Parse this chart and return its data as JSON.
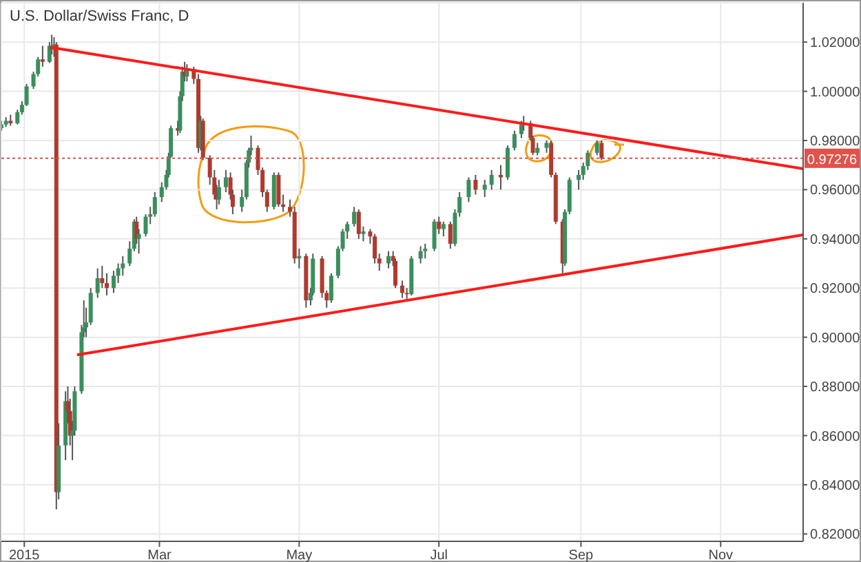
{
  "chart_data": {
    "type": "candlestick",
    "title": "U.S. Dollar/Swiss Franc, D",
    "x": [
      "2014-12-22",
      "2014-12-24",
      "2014-12-26",
      "2014-12-29",
      "2014-12-31",
      "2015-01-02",
      "2015-01-05",
      "2015-01-07",
      "2015-01-09",
      "2015-01-12",
      "2015-01-13",
      "2015-01-14",
      "2015-01-15",
      "2015-01-16",
      "2015-01-19",
      "2015-01-20",
      "2015-01-21",
      "2015-01-22",
      "2015-01-23",
      "2015-01-26",
      "2015-01-27",
      "2015-01-28",
      "2015-01-30",
      "2015-02-02",
      "2015-02-04",
      "2015-02-06",
      "2015-02-09",
      "2015-02-11",
      "2015-02-13",
      "2015-02-16",
      "2015-02-18",
      "2015-02-19",
      "2015-02-20",
      "2015-02-23",
      "2015-02-25",
      "2015-02-27",
      "2015-03-02",
      "2015-03-04",
      "2015-03-05",
      "2015-03-06",
      "2015-03-09",
      "2015-03-10",
      "2015-03-11",
      "2015-03-12",
      "2015-03-13",
      "2015-03-16",
      "2015-03-18",
      "2015-03-19",
      "2015-03-20",
      "2015-03-23",
      "2015-03-25",
      "2015-03-26",
      "2015-03-27",
      "2015-03-30",
      "2015-04-01",
      "2015-04-02",
      "2015-04-06",
      "2015-04-08",
      "2015-04-09",
      "2015-04-10",
      "2015-04-13",
      "2015-04-15",
      "2015-04-17",
      "2015-04-20",
      "2015-04-22",
      "2015-04-24",
      "2015-04-27",
      "2015-04-29",
      "2015-05-01",
      "2015-05-04",
      "2015-05-06",
      "2015-05-07",
      "2015-05-11",
      "2015-05-13",
      "2015-05-15",
      "2015-05-18",
      "2015-05-20",
      "2015-05-22",
      "2015-05-25",
      "2015-05-27",
      "2015-05-29",
      "2015-06-01",
      "2015-06-03",
      "2015-06-05",
      "2015-06-09",
      "2015-06-11",
      "2015-06-12",
      "2015-06-15",
      "2015-06-17",
      "2015-06-19",
      "2015-06-23",
      "2015-06-25",
      "2015-06-29",
      "2015-07-01",
      "2015-07-03",
      "2015-07-06",
      "2015-07-08",
      "2015-07-10",
      "2015-07-14",
      "2015-07-17",
      "2015-07-21",
      "2015-07-24",
      "2015-07-28",
      "2015-07-31",
      "2015-08-03",
      "2015-08-06",
      "2015-08-07",
      "2015-08-10",
      "2015-08-11",
      "2015-08-13",
      "2015-08-17",
      "2015-08-19",
      "2015-08-21",
      "2015-08-24",
      "2015-08-25",
      "2015-08-27",
      "2015-08-31",
      "2015-09-02",
      "2015-09-04",
      "2015-09-08",
      "2015-09-10"
    ],
    "ohlc": [
      [
        0.985,
        0.988,
        0.984,
        0.9865
      ],
      [
        0.9865,
        0.9895,
        0.9855,
        0.988
      ],
      [
        0.988,
        0.9905,
        0.986,
        0.987
      ],
      [
        0.987,
        0.9925,
        0.9865,
        0.9915
      ],
      [
        0.9915,
        0.996,
        0.9905,
        0.9945
      ],
      [
        0.9945,
        1.003,
        0.994,
        1.002
      ],
      [
        1.002,
        1.008,
        1.001,
        1.007
      ],
      [
        1.007,
        1.014,
        1.006,
        1.013
      ],
      [
        1.013,
        1.0185,
        1.01,
        1.012
      ],
      [
        1.012,
        1.02,
        1.0115,
        1.0185
      ],
      [
        1.0185,
        1.023,
        1.015,
        1.017
      ],
      [
        1.017,
        1.022,
        1.014,
        1.019
      ],
      [
        1.019,
        1.02,
        0.83,
        0.837
      ],
      [
        0.837,
        0.865,
        0.834,
        0.856
      ],
      [
        0.856,
        0.878,
        0.85,
        0.874
      ],
      [
        0.874,
        0.88,
        0.865,
        0.87
      ],
      [
        0.87,
        0.875,
        0.856,
        0.86
      ],
      [
        0.86,
        0.866,
        0.85,
        0.862
      ],
      [
        0.862,
        0.88,
        0.86,
        0.878
      ],
      [
        0.878,
        0.905,
        0.877,
        0.902
      ],
      [
        0.902,
        0.915,
        0.9,
        0.904
      ],
      [
        0.904,
        0.912,
        0.9,
        0.906
      ],
      [
        0.906,
        0.92,
        0.905,
        0.918
      ],
      [
        0.918,
        0.928,
        0.916,
        0.924
      ],
      [
        0.924,
        0.929,
        0.92,
        0.922
      ],
      [
        0.922,
        0.926,
        0.917,
        0.92
      ],
      [
        0.92,
        0.927,
        0.918,
        0.925
      ],
      [
        0.925,
        0.93,
        0.922,
        0.928
      ],
      [
        0.928,
        0.933,
        0.925,
        0.93
      ],
      [
        0.93,
        0.939,
        0.929,
        0.936
      ],
      [
        0.936,
        0.948,
        0.935,
        0.947
      ],
      [
        0.947,
        0.949,
        0.938,
        0.94
      ],
      [
        0.94,
        0.944,
        0.934,
        0.942
      ],
      [
        0.942,
        0.95,
        0.941,
        0.949
      ],
      [
        0.949,
        0.953,
        0.946,
        0.95
      ],
      [
        0.95,
        0.959,
        0.949,
        0.957
      ],
      [
        0.957,
        0.963,
        0.955,
        0.961
      ],
      [
        0.961,
        0.968,
        0.96,
        0.966
      ],
      [
        0.966,
        0.975,
        0.965,
        0.9735
      ],
      [
        0.9735,
        0.986,
        0.973,
        0.985
      ],
      [
        0.985,
        0.988,
        0.982,
        0.984
      ],
      [
        0.984,
        1.0,
        0.983,
        0.998
      ],
      [
        0.998,
        1.01,
        0.996,
        1.008
      ],
      [
        1.008,
        1.012,
        1.004,
        1.006
      ],
      [
        1.006,
        1.011,
        1.004,
        1.009
      ],
      [
        1.009,
        1.01,
        1.003,
        1.005
      ],
      [
        1.005,
        1.007,
        0.975,
        0.977
      ],
      [
        0.977,
        0.99,
        0.976,
        0.988
      ],
      [
        0.988,
        0.989,
        0.972,
        0.973
      ],
      [
        0.973,
        0.974,
        0.962,
        0.965
      ],
      [
        0.965,
        0.968,
        0.956,
        0.958
      ],
      [
        0.958,
        0.962,
        0.952,
        0.956
      ],
      [
        0.956,
        0.964,
        0.954,
        0.961
      ],
      [
        0.961,
        0.968,
        0.959,
        0.965
      ],
      [
        0.965,
        0.967,
        0.956,
        0.958
      ],
      [
        0.958,
        0.96,
        0.95,
        0.953
      ],
      [
        0.953,
        0.96,
        0.951,
        0.957
      ],
      [
        0.957,
        0.972,
        0.956,
        0.971
      ],
      [
        0.971,
        0.977,
        0.969,
        0.976
      ],
      [
        0.976,
        0.982,
        0.974,
        0.977
      ],
      [
        0.977,
        0.978,
        0.966,
        0.968
      ],
      [
        0.968,
        0.969,
        0.957,
        0.959
      ],
      [
        0.959,
        0.96,
        0.951,
        0.953
      ],
      [
        0.953,
        0.967,
        0.952,
        0.966
      ],
      [
        0.966,
        0.967,
        0.953,
        0.954
      ],
      [
        0.954,
        0.958,
        0.951,
        0.953
      ],
      [
        0.953,
        0.956,
        0.949,
        0.951
      ],
      [
        0.951,
        0.953,
        0.93,
        0.932
      ],
      [
        0.932,
        0.936,
        0.928,
        0.933
      ],
      [
        0.933,
        0.934,
        0.912,
        0.915
      ],
      [
        0.915,
        0.92,
        0.913,
        0.918
      ],
      [
        0.918,
        0.934,
        0.917,
        0.932
      ],
      [
        0.932,
        0.933,
        0.916,
        0.918
      ],
      [
        0.918,
        0.919,
        0.912,
        0.915
      ],
      [
        0.915,
        0.926,
        0.914,
        0.925
      ],
      [
        0.925,
        0.937,
        0.924,
        0.936
      ],
      [
        0.936,
        0.944,
        0.935,
        0.943
      ],
      [
        0.943,
        0.947,
        0.94,
        0.946
      ],
      [
        0.946,
        0.953,
        0.945,
        0.951
      ],
      [
        0.951,
        0.952,
        0.94,
        0.942
      ],
      [
        0.942,
        0.945,
        0.939,
        0.943
      ],
      [
        0.943,
        0.944,
        0.938,
        0.941
      ],
      [
        0.941,
        0.942,
        0.93,
        0.932
      ],
      [
        0.932,
        0.934,
        0.927,
        0.93
      ],
      [
        0.93,
        0.935,
        0.928,
        0.933
      ],
      [
        0.933,
        0.935,
        0.929,
        0.931
      ],
      [
        0.931,
        0.932,
        0.92,
        0.921
      ],
      [
        0.921,
        0.923,
        0.916,
        0.918
      ],
      [
        0.918,
        0.92,
        0.915,
        0.9175
      ],
      [
        0.9175,
        0.933,
        0.917,
        0.932
      ],
      [
        0.932,
        0.937,
        0.93,
        0.935
      ],
      [
        0.935,
        0.938,
        0.932,
        0.936
      ],
      [
        0.936,
        0.948,
        0.935,
        0.947
      ],
      [
        0.947,
        0.949,
        0.942,
        0.944
      ],
      [
        0.944,
        0.947,
        0.941,
        0.946
      ],
      [
        0.946,
        0.947,
        0.936,
        0.938
      ],
      [
        0.938,
        0.952,
        0.937,
        0.9506
      ],
      [
        0.9506,
        0.959,
        0.949,
        0.957
      ],
      [
        0.957,
        0.965,
        0.955,
        0.964
      ],
      [
        0.964,
        0.966,
        0.958,
        0.96
      ],
      [
        0.96,
        0.964,
        0.957,
        0.962
      ],
      [
        0.962,
        0.968,
        0.96,
        0.966
      ],
      [
        0.966,
        0.97,
        0.96,
        0.965
      ],
      [
        0.965,
        0.978,
        0.964,
        0.977
      ],
      [
        0.977,
        0.984,
        0.976,
        0.9826
      ],
      [
        0.9826,
        0.988,
        0.981,
        0.9864
      ],
      [
        0.9864,
        0.99,
        0.984,
        0.987
      ],
      [
        0.987,
        0.988,
        0.98,
        0.981
      ],
      [
        0.981,
        0.982,
        0.974,
        0.975
      ],
      [
        0.975,
        0.979,
        0.974,
        0.977
      ],
      [
        0.977,
        0.98,
        0.975,
        0.979
      ],
      [
        0.979,
        0.98,
        0.965,
        0.966
      ],
      [
        0.966,
        0.967,
        0.946,
        0.947
      ],
      [
        0.947,
        0.948,
        0.926,
        0.93
      ],
      [
        0.93,
        0.952,
        0.929,
        0.951
      ],
      [
        0.951,
        0.965,
        0.95,
        0.964
      ],
      [
        0.964,
        0.968,
        0.96,
        0.966
      ],
      [
        0.966,
        0.971,
        0.964,
        0.9696
      ],
      [
        0.9696,
        0.976,
        0.968,
        0.975
      ],
      [
        0.975,
        0.98,
        0.974,
        0.979
      ],
      [
        0.979,
        0.98,
        0.972,
        0.9728
      ]
    ],
    "colors": [
      "#3a8f5c",
      "#3a8f5c",
      "#b03a2e",
      "#3a8f5c",
      "#3a8f5c",
      "#3a8f5c",
      "#3a8f5c",
      "#3a8f5c",
      "#b03a2e",
      "#3a8f5c",
      "#b03a2e",
      "#3a8f5c",
      "#b03a2e",
      "#3a8f5c",
      "#3a8f5c",
      "#b03a2e",
      "#b03a2e",
      "#3a8f5c",
      "#3a8f5c",
      "#3a8f5c",
      "#3a8f5c",
      "#3a8f5c",
      "#3a8f5c",
      "#3a8f5c",
      "#b03a2e",
      "#b03a2e",
      "#3a8f5c",
      "#3a8f5c",
      "#3a8f5c",
      "#3a8f5c",
      "#3a8f5c",
      "#b03a2e",
      "#3a8f5c",
      "#3a8f5c",
      "#3a8f5c",
      "#3a8f5c",
      "#3a8f5c",
      "#3a8f5c",
      "#3a8f5c",
      "#3a8f5c",
      "#b03a2e",
      "#3a8f5c",
      "#3a8f5c",
      "#b03a2e",
      "#3a8f5c",
      "#b03a2e",
      "#b03a2e",
      "#3a8f5c",
      "#b03a2e",
      "#b03a2e",
      "#b03a2e",
      "#b03a2e",
      "#3a8f5c",
      "#3a8f5c",
      "#b03a2e",
      "#b03a2e",
      "#3a8f5c",
      "#3a8f5c",
      "#3a8f5c",
      "#3a8f5c",
      "#b03a2e",
      "#b03a2e",
      "#b03a2e",
      "#3a8f5c",
      "#b03a2e",
      "#b03a2e",
      "#b03a2e",
      "#b03a2e",
      "#3a8f5c",
      "#b03a2e",
      "#3a8f5c",
      "#3a8f5c",
      "#b03a2e",
      "#b03a2e",
      "#3a8f5c",
      "#3a8f5c",
      "#3a8f5c",
      "#3a8f5c",
      "#3a8f5c",
      "#b03a2e",
      "#3a8f5c",
      "#b03a2e",
      "#b03a2e",
      "#b03a2e",
      "#3a8f5c",
      "#b03a2e",
      "#b03a2e",
      "#b03a2e",
      "#b03a2e",
      "#3a8f5c",
      "#3a8f5c",
      "#3a8f5c",
      "#3a8f5c",
      "#b03a2e",
      "#3a8f5c",
      "#b03a2e",
      "#3a8f5c",
      "#3a8f5c",
      "#3a8f5c",
      "#b03a2e",
      "#3a8f5c",
      "#3a8f5c",
      "#b03a2e",
      "#3a8f5c",
      "#3a8f5c",
      "#3a8f5c",
      "#3a8f5c",
      "#b03a2e",
      "#b03a2e",
      "#3a8f5c",
      "#3a8f5c",
      "#b03a2e",
      "#b03a2e",
      "#b03a2e",
      "#3a8f5c",
      "#3a8f5c",
      "#3a8f5c",
      "#3a8f5c",
      "#3a8f5c",
      "#3a8f5c",
      "#b03a2e"
    ],
    "series": [
      {
        "type": "line",
        "color": "#ff1a1a",
        "x": [
          "2015-01-13",
          "2015-12-07"
        ],
        "values": [
          1.0178,
          0.9685
        ]
      },
      {
        "type": "line",
        "color": "#ff1a1a",
        "x": [
          "2015-01-24",
          "2015-12-07"
        ],
        "values": [
          0.8928,
          0.9416
        ]
      }
    ],
    "ref_lines": [
      {
        "axis": "y",
        "value": 0.97276,
        "label": "0.97276",
        "color": "#e0524a",
        "line_style": "dotted"
      }
    ],
    "xlim": [
      "2014-12-22",
      "2015-12-07"
    ],
    "xticks": [
      {
        "value": "2015-01-01",
        "label": "2015"
      },
      {
        "value": "2015-03-01",
        "label": "Mar"
      },
      {
        "value": "2015-05-01",
        "label": "May"
      },
      {
        "value": "2015-07-01",
        "label": "Jul"
      },
      {
        "value": "2015-09-01",
        "label": "Sep"
      },
      {
        "value": "2015-11-01",
        "label": "Nov"
      }
    ],
    "ylim": [
      0.817,
      1.036
    ],
    "yticks": [
      {
        "value": 0.82,
        "label": "0.82000"
      },
      {
        "value": 0.84,
        "label": "0.84000"
      },
      {
        "value": 0.86,
        "label": "0.86000"
      },
      {
        "value": 0.88,
        "label": "0.88000"
      },
      {
        "value": 0.9,
        "label": "0.90000"
      },
      {
        "value": 0.92,
        "label": "0.92000"
      },
      {
        "value": 0.94,
        "label": "0.94000"
      },
      {
        "value": 0.96,
        "label": "0.96000"
      },
      {
        "value": 0.98,
        "label": "0.98000"
      },
      {
        "value": 1.0,
        "label": "1.00000"
      },
      {
        "value": 1.02,
        "label": "1.02000"
      }
    ],
    "grid": true
  }
}
